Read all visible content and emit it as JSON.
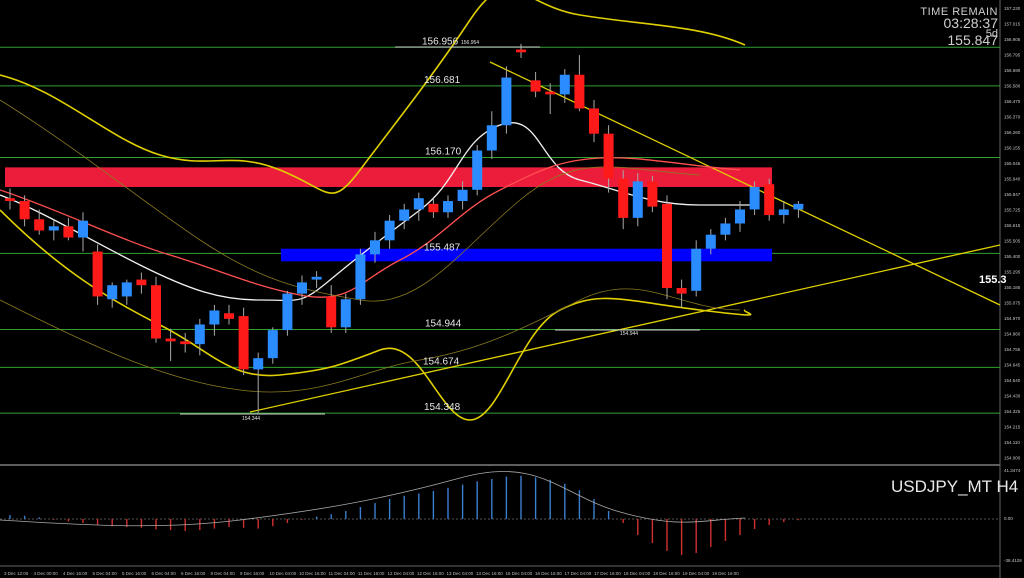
{
  "header": {
    "time_remain_label": "TIME REMAIN",
    "time_remain": "03:28:37",
    "candles_label": "5d",
    "current_price": "155.847"
  },
  "symbol": "USDJPY_MT H4",
  "colors": {
    "bull": "#2a8cff",
    "bear": "#ff1a1a",
    "resistance_zone": "#ff2040",
    "support_zone": "#0000ff",
    "trend": "#e0d000",
    "ma_fast": "#f0f0f0",
    "ma_slow": "#ff5050",
    "level": "#30a030",
    "hist_pos": "#3a7fd0",
    "hist_neg": "#d03030"
  },
  "chart_data": {
    "type": "candlestick",
    "price_range": [
      154.0,
      157.25
    ],
    "grid": false,
    "levels": [
      {
        "label": "156.956",
        "value": 156.956
      },
      {
        "label": "156.681",
        "value": 156.681
      },
      {
        "label": "156.170",
        "value": 156.17
      },
      {
        "label": "155.487",
        "value": 155.487
      },
      {
        "label": "154.944",
        "value": 154.944
      },
      {
        "label": "154.674",
        "value": 154.674
      },
      {
        "label": "154.348",
        "value": 154.348
      }
    ],
    "high_marker": "156.954",
    "low_marker_1": "154.944",
    "low_marker_2": "154.344",
    "price_tag": "155.3",
    "resistance_zone": [
      155.96,
      156.1
    ],
    "support_zone": [
      155.43,
      155.52
    ],
    "price_scale": [
      "157.230",
      "157.015",
      "156.905",
      "156.795",
      "156.690",
      "156.580",
      "156.470",
      "156.370",
      "156.260",
      "156.155",
      "156.045",
      "155.940",
      "155.847",
      "155.725",
      "155.615",
      "155.505",
      "155.400",
      "155.295",
      "155.185",
      "155.075",
      "154.970",
      "154.860",
      "154.755",
      "154.645",
      "154.540",
      "154.430",
      "154.325",
      "154.215",
      "154.110",
      "154.000"
    ],
    "candles": [
      {
        "o": 155.88,
        "h": 155.95,
        "l": 155.8,
        "c": 155.86
      },
      {
        "o": 155.86,
        "h": 155.9,
        "l": 155.68,
        "c": 155.73
      },
      {
        "o": 155.73,
        "h": 155.8,
        "l": 155.62,
        "c": 155.65
      },
      {
        "o": 155.65,
        "h": 155.72,
        "l": 155.58,
        "c": 155.68
      },
      {
        "o": 155.68,
        "h": 155.74,
        "l": 155.58,
        "c": 155.6
      },
      {
        "o": 155.6,
        "h": 155.78,
        "l": 155.5,
        "c": 155.72
      },
      {
        "o": 155.5,
        "h": 155.55,
        "l": 155.12,
        "c": 155.18
      },
      {
        "o": 155.16,
        "h": 155.28,
        "l": 155.1,
        "c": 155.26
      },
      {
        "o": 155.18,
        "h": 155.3,
        "l": 155.12,
        "c": 155.28
      },
      {
        "o": 155.3,
        "h": 155.35,
        "l": 155.2,
        "c": 155.26
      },
      {
        "o": 155.26,
        "h": 155.32,
        "l": 154.85,
        "c": 154.88
      },
      {
        "o": 154.88,
        "h": 154.95,
        "l": 154.72,
        "c": 154.86
      },
      {
        "o": 154.86,
        "h": 154.92,
        "l": 154.78,
        "c": 154.84
      },
      {
        "o": 154.84,
        "h": 155.02,
        "l": 154.76,
        "c": 154.98
      },
      {
        "o": 154.98,
        "h": 155.12,
        "l": 154.9,
        "c": 155.08
      },
      {
        "o": 155.06,
        "h": 155.12,
        "l": 154.98,
        "c": 155.02
      },
      {
        "o": 155.04,
        "h": 155.1,
        "l": 154.62,
        "c": 154.66
      },
      {
        "o": 154.66,
        "h": 154.78,
        "l": 154.35,
        "c": 154.74
      },
      {
        "o": 154.74,
        "h": 154.96,
        "l": 154.7,
        "c": 154.94
      },
      {
        "o": 154.94,
        "h": 155.22,
        "l": 154.9,
        "c": 155.2
      },
      {
        "o": 155.2,
        "h": 155.33,
        "l": 155.12,
        "c": 155.28
      },
      {
        "o": 155.3,
        "h": 155.36,
        "l": 155.24,
        "c": 155.32
      },
      {
        "o": 155.18,
        "h": 155.26,
        "l": 154.92,
        "c": 154.96
      },
      {
        "o": 154.96,
        "h": 155.2,
        "l": 154.92,
        "c": 155.16
      },
      {
        "o": 155.16,
        "h": 155.52,
        "l": 155.12,
        "c": 155.48
      },
      {
        "o": 155.48,
        "h": 155.64,
        "l": 155.42,
        "c": 155.58
      },
      {
        "o": 155.58,
        "h": 155.76,
        "l": 155.52,
        "c": 155.72
      },
      {
        "o": 155.72,
        "h": 155.84,
        "l": 155.66,
        "c": 155.8
      },
      {
        "o": 155.8,
        "h": 155.92,
        "l": 155.72,
        "c": 155.88
      },
      {
        "o": 155.84,
        "h": 155.88,
        "l": 155.74,
        "c": 155.78
      },
      {
        "o": 155.78,
        "h": 155.9,
        "l": 155.74,
        "c": 155.86
      },
      {
        "o": 155.86,
        "h": 156.0,
        "l": 155.8,
        "c": 155.94
      },
      {
        "o": 155.94,
        "h": 156.26,
        "l": 155.9,
        "c": 156.22
      },
      {
        "o": 156.22,
        "h": 156.5,
        "l": 156.16,
        "c": 156.4
      },
      {
        "o": 156.4,
        "h": 156.82,
        "l": 156.34,
        "c": 156.74
      },
      {
        "o": 156.94,
        "h": 156.98,
        "l": 156.88,
        "c": 156.92
      },
      {
        "o": 156.72,
        "h": 156.78,
        "l": 156.6,
        "c": 156.64
      },
      {
        "o": 156.64,
        "h": 156.7,
        "l": 156.48,
        "c": 156.62
      },
      {
        "o": 156.62,
        "h": 156.8,
        "l": 156.56,
        "c": 156.76
      },
      {
        "o": 156.76,
        "h": 156.9,
        "l": 156.5,
        "c": 156.52
      },
      {
        "o": 156.52,
        "h": 156.58,
        "l": 156.28,
        "c": 156.34
      },
      {
        "o": 156.34,
        "h": 156.4,
        "l": 155.92,
        "c": 156.02
      },
      {
        "o": 156.02,
        "h": 156.08,
        "l": 155.66,
        "c": 155.74
      },
      {
        "o": 155.74,
        "h": 156.06,
        "l": 155.68,
        "c": 156.0
      },
      {
        "o": 156.0,
        "h": 156.04,
        "l": 155.78,
        "c": 155.82
      },
      {
        "o": 155.84,
        "h": 155.9,
        "l": 155.16,
        "c": 155.24
      },
      {
        "o": 155.24,
        "h": 155.3,
        "l": 155.1,
        "c": 155.2
      },
      {
        "o": 155.22,
        "h": 155.58,
        "l": 155.18,
        "c": 155.52
      },
      {
        "o": 155.52,
        "h": 155.66,
        "l": 155.48,
        "c": 155.62
      },
      {
        "o": 155.62,
        "h": 155.74,
        "l": 155.58,
        "c": 155.7
      },
      {
        "o": 155.7,
        "h": 155.86,
        "l": 155.64,
        "c": 155.8
      },
      {
        "o": 155.8,
        "h": 156.0,
        "l": 155.76,
        "c": 155.96
      },
      {
        "o": 155.98,
        "h": 156.02,
        "l": 155.72,
        "c": 155.76
      },
      {
        "o": 155.76,
        "h": 155.86,
        "l": 155.7,
        "c": 155.8
      },
      {
        "o": 155.8,
        "h": 155.86,
        "l": 155.74,
        "c": 155.84
      }
    ],
    "histogram": [
      0.1,
      0.08,
      0.04,
      -0.02,
      -0.06,
      -0.1,
      -0.14,
      -0.18,
      -0.2,
      -0.22,
      -0.26,
      -0.28,
      -0.3,
      -0.28,
      -0.24,
      -0.2,
      -0.22,
      -0.24,
      -0.18,
      -0.1,
      -0.02,
      0.06,
      0.12,
      0.2,
      0.3,
      0.4,
      0.5,
      0.58,
      0.64,
      0.7,
      0.78,
      0.86,
      0.94,
      1.0,
      1.06,
      1.08,
      1.04,
      0.98,
      0.88,
      0.72,
      0.5,
      0.2,
      -0.1,
      -0.4,
      -0.6,
      -0.8,
      -0.9,
      -0.85,
      -0.7,
      -0.55,
      -0.4,
      -0.25,
      -0.15,
      -0.08,
      -0.03
    ],
    "time_labels": [
      "3 Dec 12:00",
      "4 Dec 00:00",
      "4 Dec 16:00",
      "5 Dec 04:00",
      "5 Dec 16:00",
      "6 Dec 04:00",
      "6 Dec 16:00",
      "9 Dec 04:00",
      "9 Dec 16:00",
      "10 Dec 04:00",
      "10 Dec 16:00",
      "11 Dec 04:00",
      "11 Dec 16:00",
      "12 Dec 04:00",
      "12 Dec 16:00",
      "13 Dec 04:00",
      "13 Dec 16:00",
      "16 Dec 04:00",
      "16 Dec 16:00",
      "17 Dec 04:00",
      "17 Dec 16:00",
      "18 Dec 04:00",
      "18 Dec 16:00",
      "19 Dec 04:00",
      "19 Dec 16:00"
    ],
    "indicator_scale": [
      "41.3474",
      "0.00",
      "-38.4128"
    ]
  }
}
